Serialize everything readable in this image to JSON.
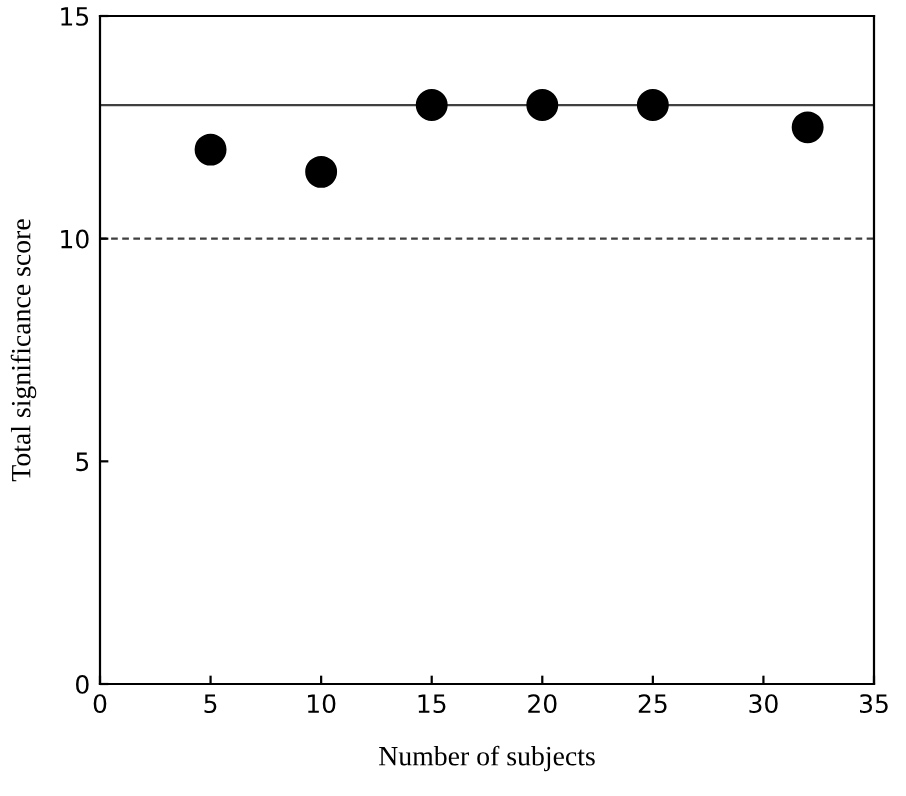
{
  "chart_data": {
    "type": "scatter",
    "xlabel": "Number of subjects",
    "ylabel": "Total significance score",
    "x": [
      5,
      10,
      15,
      20,
      25,
      32
    ],
    "values": [
      12,
      11.5,
      13,
      13,
      13,
      12.5
    ],
    "color": "#000000",
    "marker": "circle",
    "xlim": [
      0,
      35
    ],
    "xticks": [
      0,
      5,
      10,
      15,
      20,
      25,
      30,
      35
    ],
    "ylim": [
      0,
      15
    ],
    "yticks": [
      0,
      5,
      10,
      15
    ],
    "ref_lines": [
      {
        "axis": "y",
        "value": 13,
        "color": "#404040",
        "line_style": "solid"
      },
      {
        "axis": "y",
        "value": 10,
        "color": "#404040",
        "line_style": "dashed"
      }
    ],
    "grid": false,
    "legend": false
  }
}
